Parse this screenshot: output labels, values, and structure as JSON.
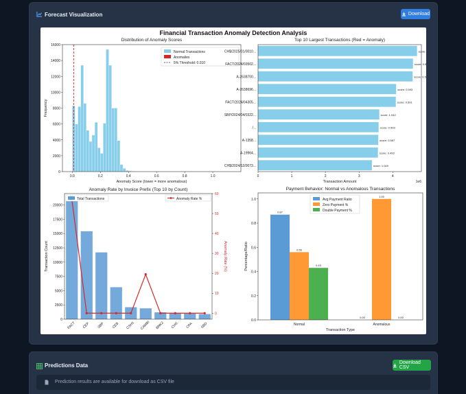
{
  "viz_panel": {
    "title": "Forecast Visualization",
    "download_label": "Download"
  },
  "predictions_panel": {
    "title": "Predictions Data",
    "download_csv_label": "Download CSV",
    "note": "Prediction results are available for download as CSV file"
  },
  "colors": {
    "panel": "#263346",
    "page": "#0f1623",
    "accent_blue": "#2f7ee0",
    "accent_green": "#22a447",
    "skyblue": "#87ceeb",
    "steelblue": "#5b9bd5",
    "red": "#d62728",
    "orange": "#ff9933",
    "green": "#4caf50"
  },
  "figure_title": "Financial Transaction Anomaly Detection Analysis",
  "chart_data": [
    {
      "type": "bar",
      "subtype": "histogram",
      "title": "Distribution of Anomaly Scores",
      "xlabel": "Anomaly Score (lower = more anomalous)",
      "ylabel": "Frequency",
      "xlim": [
        -0.07,
        1.2
      ],
      "ylim": [
        0,
        16000
      ],
      "xticks": [
        "0.0",
        "0.2",
        "0.4",
        "0.6",
        "0.8",
        "1.0"
      ],
      "yticks": [
        "0",
        "2000",
        "4000",
        "6000",
        "8000",
        "10000",
        "12000",
        "14000",
        "16000"
      ],
      "bin_width": 0.02,
      "series": [
        {
          "name": "Normal Transactions",
          "bins": [
            [
              0.01,
              8300
            ],
            [
              0.03,
              6000
            ],
            [
              0.05,
              8200
            ],
            [
              0.07,
              13400
            ],
            [
              0.09,
              8600
            ],
            [
              0.11,
              5200
            ],
            [
              0.13,
              3800
            ],
            [
              0.15,
              4600
            ],
            [
              0.17,
              6200
            ],
            [
              0.19,
              3000
            ],
            [
              0.21,
              2300
            ],
            [
              0.23,
              6100
            ],
            [
              0.25,
              15400
            ],
            [
              0.27,
              13400
            ],
            [
              0.29,
              8000
            ],
            [
              0.31,
              8000
            ],
            [
              0.33,
              3900
            ],
            [
              0.35,
              900
            ],
            [
              0.37,
              400
            ],
            [
              0.39,
              150
            ],
            [
              0.41,
              80
            ],
            [
              0.43,
              50
            ],
            [
              0.45,
              30
            ]
          ]
        },
        {
          "name": "Anomalies",
          "bins": []
        }
      ],
      "threshold": {
        "name": "5% Threshold: 0.010",
        "value": 0.01
      },
      "legend": "top-right"
    },
    {
      "type": "bar",
      "orientation": "horizontal",
      "title": "Top 10 Largest Transactions (Red = Anomaly)",
      "xlabel": "Transaction Amount",
      "x_multiplier": "1e6",
      "xlim": [
        0,
        4.85
      ],
      "xticks": [
        "0",
        "1",
        "2",
        "3",
        "4"
      ],
      "categories": [
        "CH$/2025/01/0010...",
        "FACT/2024/03502...",
        "A-2638700...",
        "A-2638696...",
        "FACT/2024/04305...",
        "SBP/2024/04/0322...",
        "/...",
        "A-1358...",
        "A-19964...",
        "CH$/2024/12/0073..."
      ],
      "values": [
        4.72,
        4.6,
        4.59,
        4.1,
        4.09,
        3.6,
        3.58,
        3.57,
        3.56,
        3.38
      ],
      "annotations": [
        "score: 1.106",
        "score: 0.577",
        "score: 0.531",
        "score: 0.493",
        "score: 0.591",
        "score: 1.042",
        "score: 0.503",
        "score: 0.587",
        "score: 0.493",
        "score: 1.049"
      ]
    },
    {
      "type": "bar",
      "secondary_type": "line",
      "title": "Anomaly Rate by Invoice Prefix (Top 10 by Count)",
      "ylabel": "Transaction Count",
      "y2label": "Anomaly Rate (%)",
      "ylim": [
        0,
        22000
      ],
      "y2lim": [
        -3,
        60
      ],
      "yticks": [
        "0",
        "2500",
        "5000",
        "7500",
        "10000",
        "12500",
        "15000",
        "17500",
        "20000"
      ],
      "y2ticks": [
        "0",
        "10",
        "20",
        "30",
        "40",
        "50",
        "60"
      ],
      "categories": [
        "FACT",
        "CEP",
        "SBP",
        "CEB",
        "CSH1",
        "CAMBI",
        "BNK2",
        "CHS",
        "CPA",
        "SBD"
      ],
      "series": [
        {
          "name": "Total Transactions",
          "values": [
            20800,
            15400,
            11700,
            5600,
            2100,
            1900,
            1200,
            1100,
            1000,
            900
          ]
        },
        {
          "name": "Anomaly Rate %",
          "values": [
            57,
            0,
            0,
            0,
            0,
            19.5,
            0,
            0,
            0,
            0
          ]
        }
      ],
      "legend": "top"
    },
    {
      "type": "bar",
      "title": "Payment Behavior: Normal vs Anomalous Transactions",
      "xlabel": "Transaction Type",
      "ylabel": "Percentage/Ratio",
      "ylim": [
        0,
        1.05
      ],
      "yticks": [
        "0.0",
        "0.2",
        "0.4",
        "0.6",
        "0.8",
        "1.0"
      ],
      "categories": [
        "Normal",
        "Anomalous"
      ],
      "series": [
        {
          "name": "Avg Payment Ratio",
          "values": [
            0.87,
            0.0
          ],
          "labels": [
            "0.87",
            "0.00"
          ]
        },
        {
          "name": "Zero Payment %",
          "values": [
            0.56,
            1.0
          ],
          "labels": [
            "0.56",
            "1.00"
          ]
        },
        {
          "name": "Double Payment %",
          "values": [
            0.43,
            0.0
          ],
          "labels": [
            "0.43",
            "0.00"
          ]
        }
      ],
      "legend": "top-center"
    }
  ]
}
